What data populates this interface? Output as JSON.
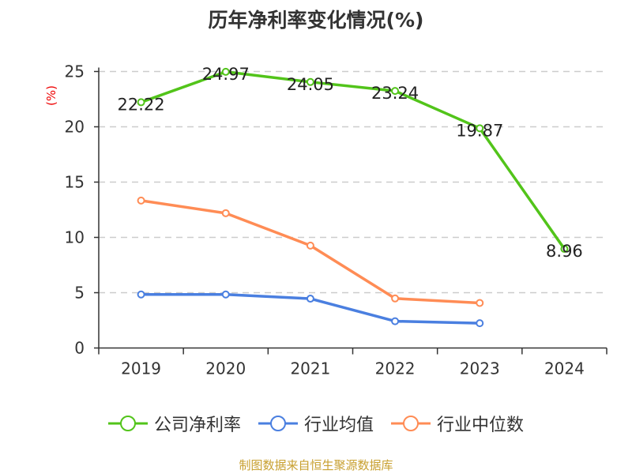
{
  "chart_data": {
    "type": "line",
    "title": "历年净利率变化情况(%)",
    "ylabel": "(%)",
    "categories": [
      "2019",
      "2020",
      "2021",
      "2022",
      "2023",
      "2024"
    ],
    "ylim": [
      0,
      25
    ],
    "yticks": [
      0,
      5,
      10,
      15,
      20,
      25
    ],
    "grid": true,
    "legend_position": "bottom",
    "series": [
      {
        "name": "公司净利率",
        "color": "#52c41a",
        "values": [
          22.22,
          24.97,
          24.05,
          23.24,
          19.87,
          8.96
        ],
        "labels": [
          "22.22",
          "24.97",
          "24.05",
          "23.24",
          "19.87",
          "8.96"
        ]
      },
      {
        "name": "行业均值",
        "color": "#4a7fe0",
        "values": [
          4.84,
          4.84,
          4.46,
          2.42,
          2.24,
          null
        ]
      },
      {
        "name": "行业中位数",
        "color": "#ff8c55",
        "values": [
          13.33,
          12.19,
          9.26,
          4.48,
          4.07,
          null
        ]
      }
    ]
  },
  "source": "制图数据来自恒生聚源数据库"
}
